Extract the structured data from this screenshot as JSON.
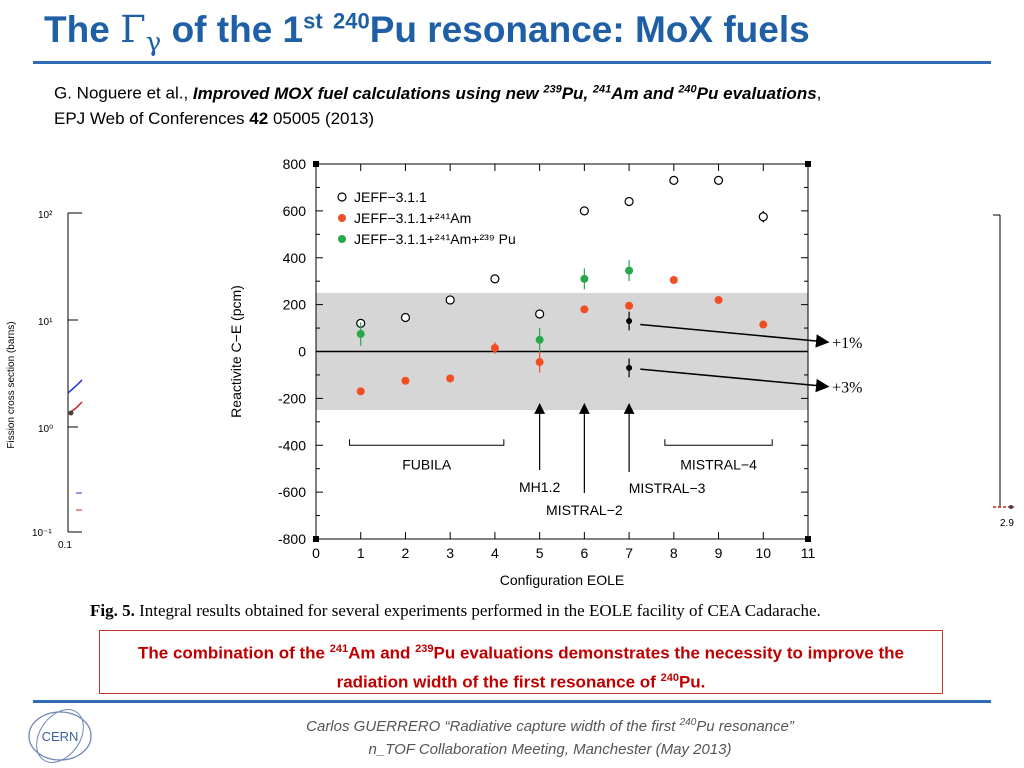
{
  "slide": {
    "title_pre": "The ",
    "title_gamma": "Γ",
    "title_gamma_sub": "γ",
    "title_mid": " of the 1",
    "title_st": "st",
    "title_space": " ",
    "title_isotope": "240",
    "title_post": "Pu resonance: MoX fuels"
  },
  "citation": {
    "authors": "G. Noguere et al., ",
    "title_a": "Improved MOX fuel calculations using new ",
    "iso1": "239",
    "el1": "Pu, ",
    "iso2": "241",
    "el2": "Am and ",
    "iso3": "240",
    "el3": "Pu evaluations",
    "comma": ",",
    "journal": "EPJ Web of Conferences ",
    "volume": "42",
    "rest": " 05005 (2013)"
  },
  "caption": {
    "label": "Fig. 5.",
    "text": " Integral results obtained for several experiments performed in the EOLE facility of CEA Cadarache."
  },
  "callout": {
    "t1": "The combination of the ",
    "iso1": "241",
    "t2": "Am and ",
    "iso2": "239",
    "t3": "Pu evaluations demonstrates the necessity to improve the radiation width of the first resonance of ",
    "iso3": "240",
    "t4": "Pu."
  },
  "footer": {
    "line1_a": "Carlos GUERRERO “Radiative capture width of the first ",
    "line1_iso": "240",
    "line1_b": "Pu resonance”",
    "line2": "n_TOF Collaboration Meeting, Manchester (May 2013)",
    "logo_text": "CERN"
  },
  "background_plot": {
    "ylabel": "Fission cross section (barns)",
    "yticks": [
      "10²",
      "10¹",
      "10⁰",
      "10⁻¹"
    ],
    "xtick_left": "0.1",
    "xtick_right": "2.9"
  },
  "chart_data": {
    "type": "scatter",
    "xlabel": "Configuration EOLE",
    "ylabel": "Reactivite C−E (pcm)",
    "xlim": [
      0,
      11
    ],
    "ylim": [
      -800,
      800
    ],
    "xticks": [
      0,
      1,
      2,
      3,
      4,
      5,
      6,
      7,
      8,
      9,
      10,
      11
    ],
    "yticks": [
      800,
      600,
      400,
      200,
      0,
      -200,
      -400,
      -600,
      -800
    ],
    "band": [
      -250,
      250
    ],
    "colors": {
      "jeff": "#000000",
      "am": "#f04e23",
      "ampu": "#27a84a",
      "band": "#d6d6d6"
    },
    "legend": {
      "position": "top-left",
      "entries": [
        {
          "key": "jeff",
          "label": "JEFF−3.1.1"
        },
        {
          "key": "am",
          "label": "JEFF−3.1.1+²⁴¹Am"
        },
        {
          "key": "ampu",
          "label": "JEFF−3.1.1+²⁴¹Am+²³⁹ Pu"
        }
      ]
    },
    "series": [
      {
        "key": "jeff",
        "marker": "open-circle",
        "x": [
          1,
          2,
          3,
          4,
          5,
          6,
          7,
          8,
          9,
          10
        ],
        "y": [
          120,
          145,
          220,
          310,
          160,
          600,
          640,
          730,
          730,
          575
        ],
        "err": [
          0,
          0,
          0,
          0,
          0,
          0,
          0,
          0,
          0,
          25
        ]
      },
      {
        "key": "am",
        "marker": "dot",
        "x": [
          1,
          2,
          3,
          4,
          5,
          6,
          7,
          8,
          9,
          10
        ],
        "y": [
          -170,
          -125,
          -115,
          15,
          -45,
          180,
          195,
          305,
          220,
          115
        ],
        "err": [
          0,
          0,
          0,
          25,
          45,
          0,
          0,
          0,
          0,
          0
        ]
      },
      {
        "key": "ampu",
        "marker": "dot",
        "x": [
          1,
          5,
          6,
          7
        ],
        "y": [
          75,
          50,
          310,
          345
        ],
        "err": [
          50,
          50,
          45,
          45
        ]
      },
      {
        "key": "mistral3",
        "marker": "black-dot",
        "x": [
          7,
          7
        ],
        "y": [
          130,
          -70
        ],
        "err": [
          40,
          40
        ]
      }
    ],
    "groups": [
      {
        "label": "FUBILA",
        "from": 0.75,
        "to": 4.2
      },
      {
        "label": "MISTRAL−4",
        "from": 7.8,
        "to": 10.2
      }
    ],
    "pointers": [
      {
        "label": "MH1.2",
        "x": 5.0
      },
      {
        "label": "MISTRAL−2",
        "x": 6.0
      },
      {
        "label": "MISTRAL−3",
        "x": 7.0
      }
    ],
    "annotations": [
      {
        "label": "+1%",
        "from": [
          7.25,
          115
        ],
        "to": [
          11.45,
          40
        ]
      },
      {
        "label": "+3%",
        "from": [
          7.25,
          -75
        ],
        "to": [
          11.45,
          -150
        ]
      }
    ]
  }
}
